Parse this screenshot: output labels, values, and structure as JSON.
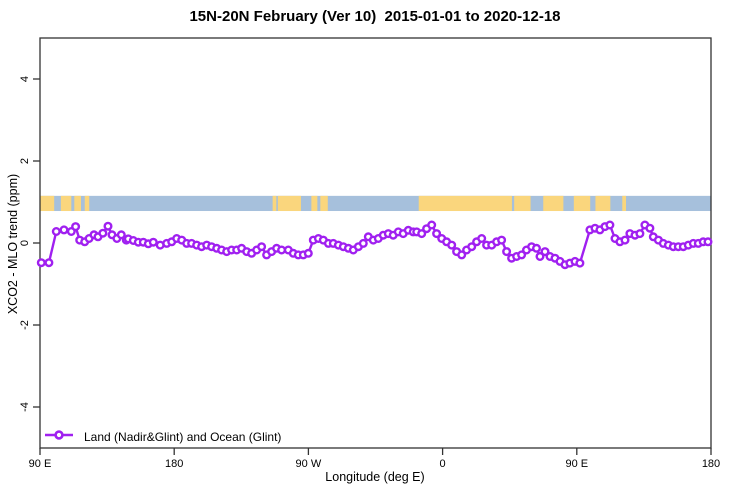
{
  "title": "15N-20N February (Ver 10)  2015-01-01 to 2020-12-18",
  "axes": {
    "x_label": "Longitude (deg E)",
    "y_label": "XCO2 - MLO trend (ppm)",
    "xlim": [
      90,
      540
    ],
    "ylim": [
      -5,
      5
    ],
    "x_ticks": [
      {
        "value": 90,
        "label": "90 E"
      },
      {
        "value": 180,
        "label": "180"
      },
      {
        "value": 270,
        "label": "90 W"
      },
      {
        "value": 360,
        "label": "0"
      },
      {
        "value": 450,
        "label": "90 E"
      },
      {
        "value": 540,
        "label": "180"
      }
    ],
    "y_ticks": [
      {
        "value": 4,
        "label": "4"
      },
      {
        "value": 2,
        "label": "2"
      },
      {
        "value": 0,
        "label": "0"
      },
      {
        "value": -2,
        "label": "-2"
      },
      {
        "value": -4,
        "label": "-4"
      }
    ]
  },
  "legend": {
    "label": "Land (Nadir&Glint) and Ocean (Glint)"
  },
  "colors": {
    "series": "#A020F0",
    "marker_fill": "#ffffff",
    "ocean": "#A6C0DC",
    "land": "#FAD67D",
    "axis": "#333333",
    "text": "#000000"
  },
  "band": {
    "description": "land-ocean strip drawn across the plot near y=1",
    "y_range": [
      0.78,
      1.15
    ],
    "ocean_range": [
      90,
      540
    ],
    "land_segments": [
      [
        90,
        99.5
      ],
      [
        104,
        111
      ],
      [
        113,
        117.5
      ],
      [
        120,
        123
      ],
      [
        246,
        248.5
      ],
      [
        249.5,
        265
      ],
      [
        272,
        276
      ],
      [
        278,
        283
      ],
      [
        344,
        406.5
      ],
      [
        408,
        419
      ],
      [
        427.5,
        441
      ],
      [
        448,
        459
      ],
      [
        462.5,
        472.5
      ],
      [
        480.5,
        483
      ]
    ]
  },
  "chart_data": {
    "type": "line",
    "title": "15N-20N February (Ver 10)  2015-01-01 to 2020-12-18",
    "xlabel": "Longitude (deg E)",
    "ylabel": "XCO2 - MLO trend (ppm)",
    "xlim": [
      90,
      540
    ],
    "ylim": [
      -5,
      5
    ],
    "grid": false,
    "legend_position": "bottom-left",
    "series_name": "Land (Nadir&Glint) and Ocean (Glint)",
    "marker": "open-circle",
    "x": [
      90.9,
      96.0,
      100.9,
      106.1,
      111.0,
      113.9,
      116.6,
      120.0,
      122.9,
      126.2,
      128.9,
      132.2,
      135.6,
      138.3,
      141.6,
      144.5,
      147.9,
      149.2,
      152.6,
      155.9,
      159.3,
      162.6,
      166.0,
      170.6,
      175.0,
      178.3,
      181.7,
      185.0,
      188.4,
      191.7,
      195.1,
      198.4,
      201.8,
      205.1,
      208.5,
      211.8,
      215.2,
      218.5,
      221.9,
      225.2,
      228.6,
      231.9,
      235.3,
      238.6,
      242.0,
      245.3,
      248.7,
      252.0,
      256.5,
      259.9,
      263.2,
      266.6,
      269.9,
      273.3,
      276.7,
      280.0,
      283.4,
      286.7,
      290.1,
      293.4,
      296.8,
      300.1,
      303.5,
      306.8,
      310.2,
      313.5,
      316.9,
      320.2,
      323.6,
      326.9,
      330.3,
      333.6,
      337.0,
      340.3,
      342.6,
      346.0,
      349.3,
      352.7,
      356.0,
      359.4,
      362.7,
      366.1,
      369.4,
      372.8,
      376.1,
      379.5,
      382.8,
      386.2,
      389.5,
      392.9,
      396.2,
      399.6,
      402.9,
      406.3,
      409.6,
      413.0,
      416.3,
      419.7,
      423.0,
      425.3,
      428.7,
      432.0,
      435.4,
      438.7,
      442.1,
      445.4,
      448.8,
      452.1,
      458.8,
      462.2,
      465.5,
      468.9,
      472.2,
      475.6,
      478.9,
      482.3,
      485.6,
      489.0,
      492.3,
      495.7,
      499.0,
      501.3,
      504.7,
      508.0,
      511.4,
      514.7,
      518.1,
      521.4,
      524.8,
      528.1,
      531.5,
      534.8,
      538.0
    ],
    "y": [
      -0.48,
      -0.48,
      0.28,
      0.32,
      0.28,
      0.4,
      0.07,
      0.03,
      0.11,
      0.2,
      0.15,
      0.24,
      0.41,
      0.2,
      0.11,
      0.2,
      0.07,
      0.1,
      0.06,
      0.02,
      0.02,
      -0.02,
      0.02,
      -0.05,
      -0.01,
      0.03,
      0.11,
      0.07,
      -0.01,
      -0.01,
      -0.05,
      -0.09,
      -0.05,
      -0.09,
      -0.13,
      -0.17,
      -0.21,
      -0.17,
      -0.17,
      -0.13,
      -0.21,
      -0.25,
      -0.17,
      -0.09,
      -0.29,
      -0.21,
      -0.13,
      -0.17,
      -0.17,
      -0.25,
      -0.29,
      -0.29,
      -0.25,
      0.07,
      0.11,
      0.07,
      -0.01,
      -0.01,
      -0.05,
      -0.09,
      -0.13,
      -0.17,
      -0.09,
      -0.01,
      0.15,
      0.07,
      0.11,
      0.19,
      0.23,
      0.19,
      0.27,
      0.23,
      0.31,
      0.27,
      0.27,
      0.23,
      0.35,
      0.44,
      0.23,
      0.11,
      0.03,
      -0.05,
      -0.21,
      -0.29,
      -0.17,
      -0.09,
      0.03,
      0.11,
      -0.05,
      -0.05,
      0.03,
      0.07,
      -0.21,
      -0.37,
      -0.33,
      -0.29,
      -0.17,
      -0.09,
      -0.13,
      -0.33,
      -0.21,
      -0.33,
      -0.37,
      -0.45,
      -0.53,
      -0.49,
      -0.45,
      -0.49,
      0.32,
      0.36,
      0.32,
      0.4,
      0.44,
      0.11,
      0.03,
      0.07,
      0.23,
      0.19,
      0.23,
      0.44,
      0.36,
      0.15,
      0.07,
      -0.01,
      -0.05,
      -0.09,
      -0.09,
      -0.09,
      -0.05,
      -0.01,
      -0.01,
      0.03,
      0.03
    ]
  }
}
